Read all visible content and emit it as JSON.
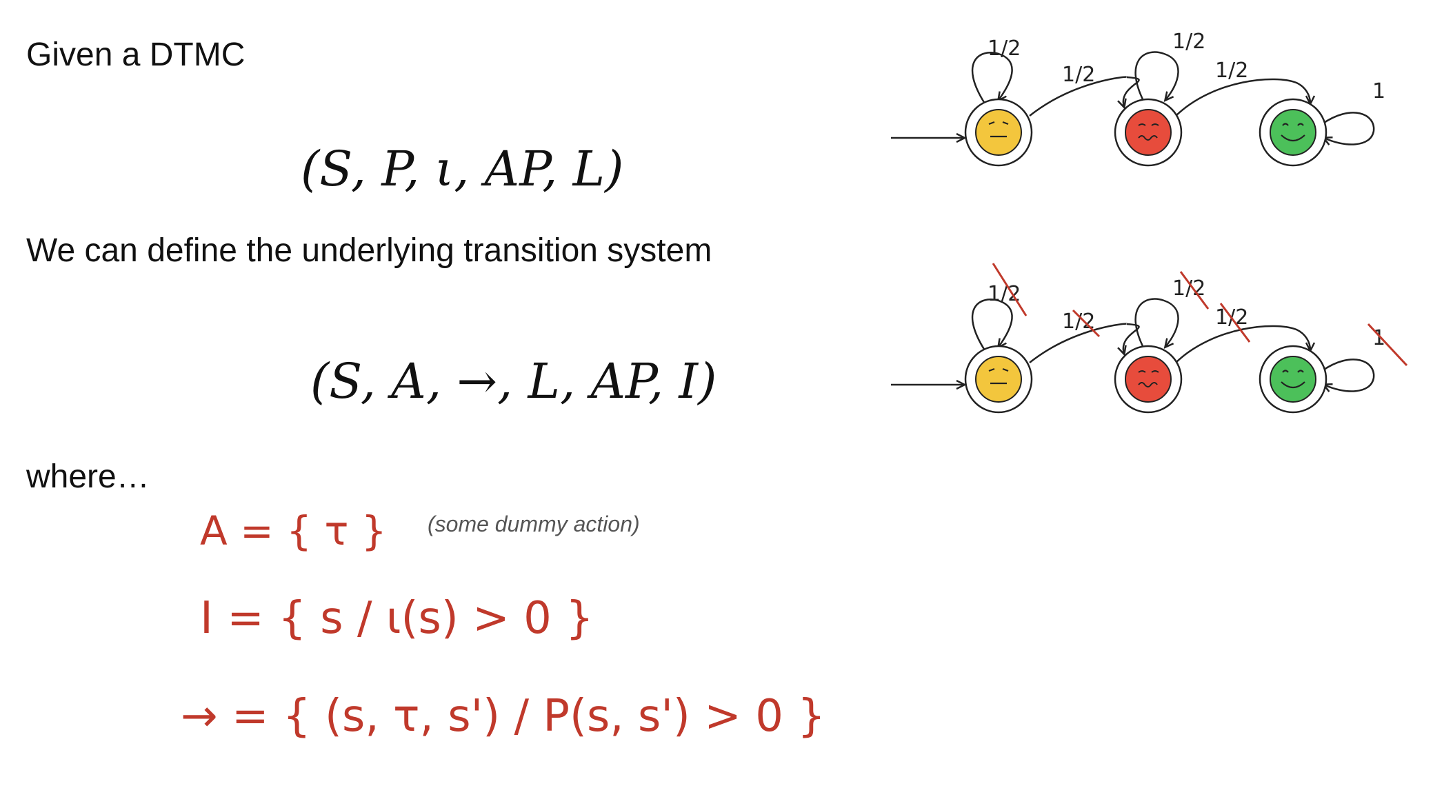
{
  "slide": {
    "line1": "Given a DTMC",
    "dtmc_tuple": "(S, P, ι, AP, L)",
    "line2": "We can define the underlying transition system",
    "ts_tuple": "(S, A, →, L, AP, I)",
    "line3": "where…"
  },
  "definitions": {
    "a_def": "A = { τ }",
    "a_note": "(some dummy action)",
    "i_def": "I = { s / ι(s) > 0 }",
    "arrow_def": "→ = { (s, τ, s') / P(s, s') > 0 }"
  },
  "diagram": {
    "labels": {
      "self_loop_1": "1/2",
      "edge_1_2": "1/2",
      "self_loop_2": "1/2",
      "edge_2_3": "1/2",
      "self_loop_3": "1"
    },
    "state_colors": [
      "#f3c63d",
      "#e74c3c",
      "#4cc05a"
    ],
    "strike_color": "#c0392b"
  }
}
